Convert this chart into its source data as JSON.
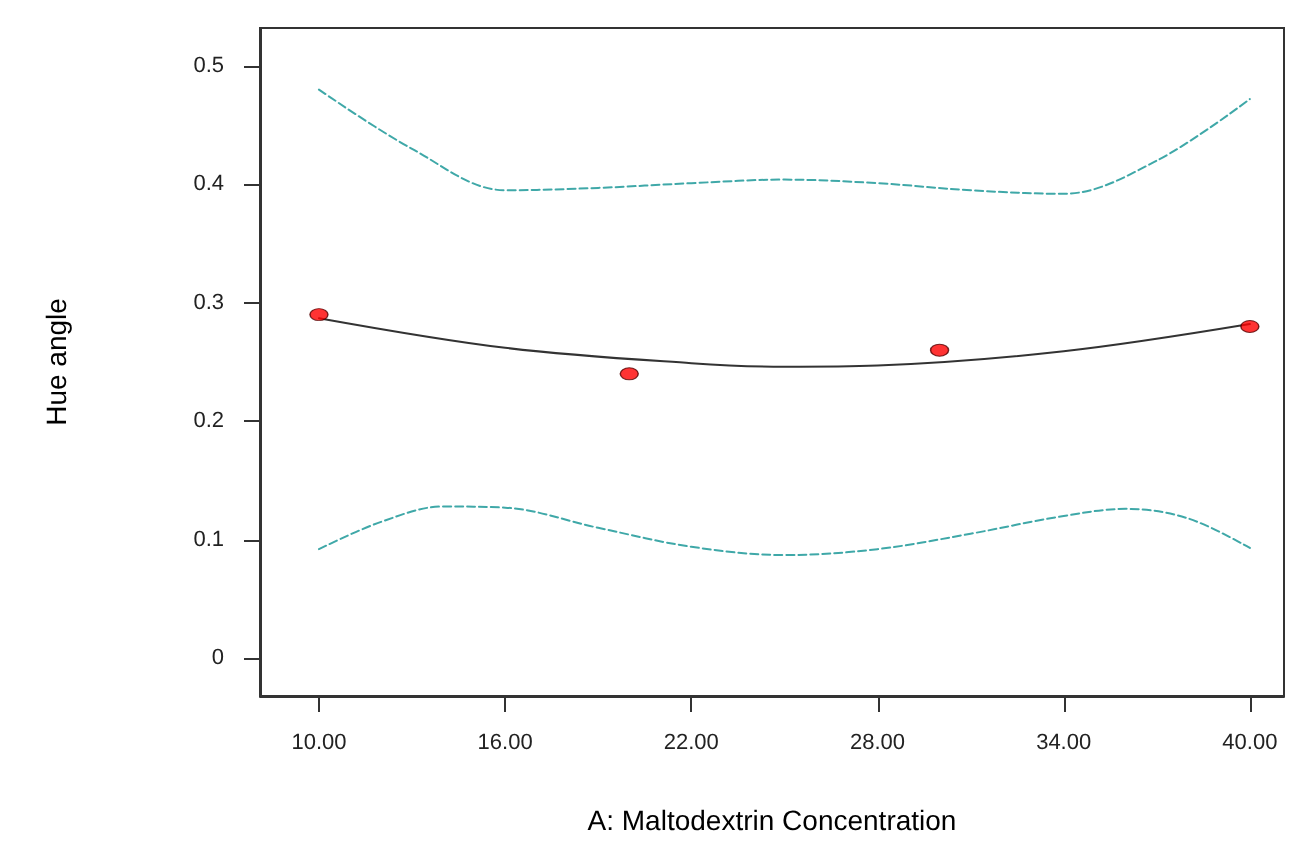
{
  "chart_data": {
    "type": "line",
    "xlabel": "A: Maltodextrin Concentration",
    "ylabel": "Hue angle",
    "xlim": [
      8.1,
      41.1
    ],
    "ylim": [
      -0.032,
      0.532
    ],
    "xticks": [
      {
        "value": 10,
        "label": "10.00"
      },
      {
        "value": 16,
        "label": "16.00"
      },
      {
        "value": 22,
        "label": "22.00"
      },
      {
        "value": 28,
        "label": "28.00"
      },
      {
        "value": 34,
        "label": "34.00"
      },
      {
        "value": 40,
        "label": "40.00"
      }
    ],
    "yticks": [
      0,
      0.1,
      0.2,
      0.3,
      0.4,
      0.5
    ],
    "grid": false,
    "series": [
      {
        "color": "#3fa8a8",
        "line_style": "dashed",
        "marker": "none",
        "x": [
          10,
          13,
          16,
          19,
          22,
          25,
          28,
          31,
          34,
          37,
          40
        ],
        "values": [
          0.48,
          0.43,
          0.395,
          0.397,
          0.401,
          0.404,
          0.401,
          0.395,
          0.392,
          0.42,
          0.472
        ]
      },
      {
        "color": "#3fa8a8",
        "line_style": "dashed",
        "marker": "none",
        "x": [
          10,
          12,
          14,
          16,
          19,
          22,
          25,
          28,
          31,
          34,
          36,
          38,
          40
        ],
        "values": [
          0.092,
          0.115,
          0.128,
          0.127,
          0.11,
          0.094,
          0.087,
          0.092,
          0.105,
          0.12,
          0.126,
          0.118,
          0.093
        ]
      },
      {
        "color": "#333333",
        "line_style": "solid",
        "marker": "none",
        "x": [
          10,
          16,
          22,
          25,
          28,
          34,
          40
        ],
        "values": [
          0.287,
          0.262,
          0.249,
          0.246,
          0.247,
          0.259,
          0.282
        ]
      },
      {
        "type": "scatter",
        "color": "#ff0000",
        "marker": "circle",
        "x": [
          10,
          20,
          30,
          40
        ],
        "values": [
          0.29,
          0.24,
          0.26,
          0.28
        ]
      }
    ]
  }
}
